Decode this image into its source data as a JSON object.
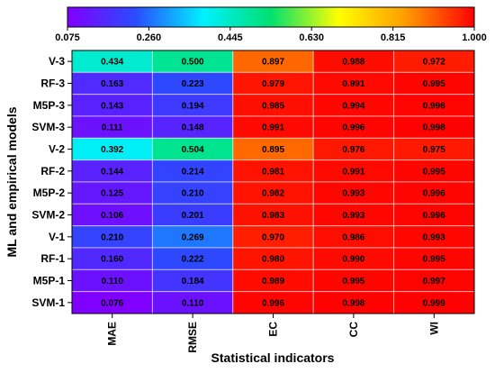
{
  "chart_data": {
    "type": "heatmap",
    "xlabel": "Statistical indicators",
    "ylabel": "ML and empirical models",
    "columns": [
      "MAE",
      "RMSE",
      "EC",
      "CC",
      "WI"
    ],
    "rows": [
      "V-3",
      "RF-3",
      "M5P-3",
      "SVM-3",
      "V-2",
      "RF-2",
      "M5P-2",
      "SVM-2",
      "V-1",
      "RF-1",
      "M5P-1",
      "SVM-1"
    ],
    "values": [
      [
        0.434,
        0.5,
        0.897,
        0.988,
        0.972
      ],
      [
        0.163,
        0.223,
        0.979,
        0.991,
        0.995
      ],
      [
        0.143,
        0.194,
        0.985,
        0.994,
        0.996
      ],
      [
        0.111,
        0.148,
        0.991,
        0.996,
        0.998
      ],
      [
        0.392,
        0.504,
        0.895,
        0.976,
        0.975
      ],
      [
        0.144,
        0.214,
        0.981,
        0.991,
        0.995
      ],
      [
        0.125,
        0.21,
        0.982,
        0.993,
        0.996
      ],
      [
        0.106,
        0.201,
        0.983,
        0.993,
        0.996
      ],
      [
        0.21,
        0.269,
        0.97,
        0.986,
        0.993
      ],
      [
        0.16,
        0.222,
        0.98,
        0.99,
        0.995
      ],
      [
        0.11,
        0.184,
        0.989,
        0.995,
        0.997
      ],
      [
        0.076,
        0.11,
        0.996,
        0.998,
        0.999
      ]
    ],
    "value_labels": [
      [
        "0.434",
        "0.500",
        "0.897",
        "0.988",
        "0.972"
      ],
      [
        "0.163",
        "0.223",
        "0.979",
        "0.991",
        "0.995"
      ],
      [
        "0.143",
        "0.194",
        "0.985",
        "0.994",
        "0.996"
      ],
      [
        "0.111",
        "0.148",
        "0.991",
        "0.996",
        "0.998"
      ],
      [
        "0.392",
        "0.504",
        "0.895",
        "0.976",
        "0.975"
      ],
      [
        "0.144",
        "0.214",
        "0.981",
        "0.991",
        "0.995"
      ],
      [
        "0.125",
        "0.210",
        "0.982",
        "0.993",
        "0.996"
      ],
      [
        "0.106",
        "0.201",
        "0.983",
        "0.993",
        "0.996"
      ],
      [
        "0.210",
        "0.269",
        "0.970",
        "0.986",
        "0.993"
      ],
      [
        "0.160",
        "0.222",
        "0.980",
        "0.990",
        "0.995"
      ],
      [
        "0.110",
        "0.184",
        "0.989",
        "0.995",
        "0.997"
      ],
      [
        "0.076",
        "0.110",
        "0.996",
        "0.998",
        "0.999"
      ]
    ],
    "colorbar": {
      "range": [
        0.075,
        1.0
      ],
      "ticks": [
        "0.075",
        "0.260",
        "0.445",
        "0.630",
        "0.815",
        "1.000"
      ],
      "colors": [
        "#8000ff",
        "#2a4bff",
        "#00f0ff",
        "#00e070",
        "#ffff00",
        "#ff9a00",
        "#ff0000"
      ]
    }
  }
}
